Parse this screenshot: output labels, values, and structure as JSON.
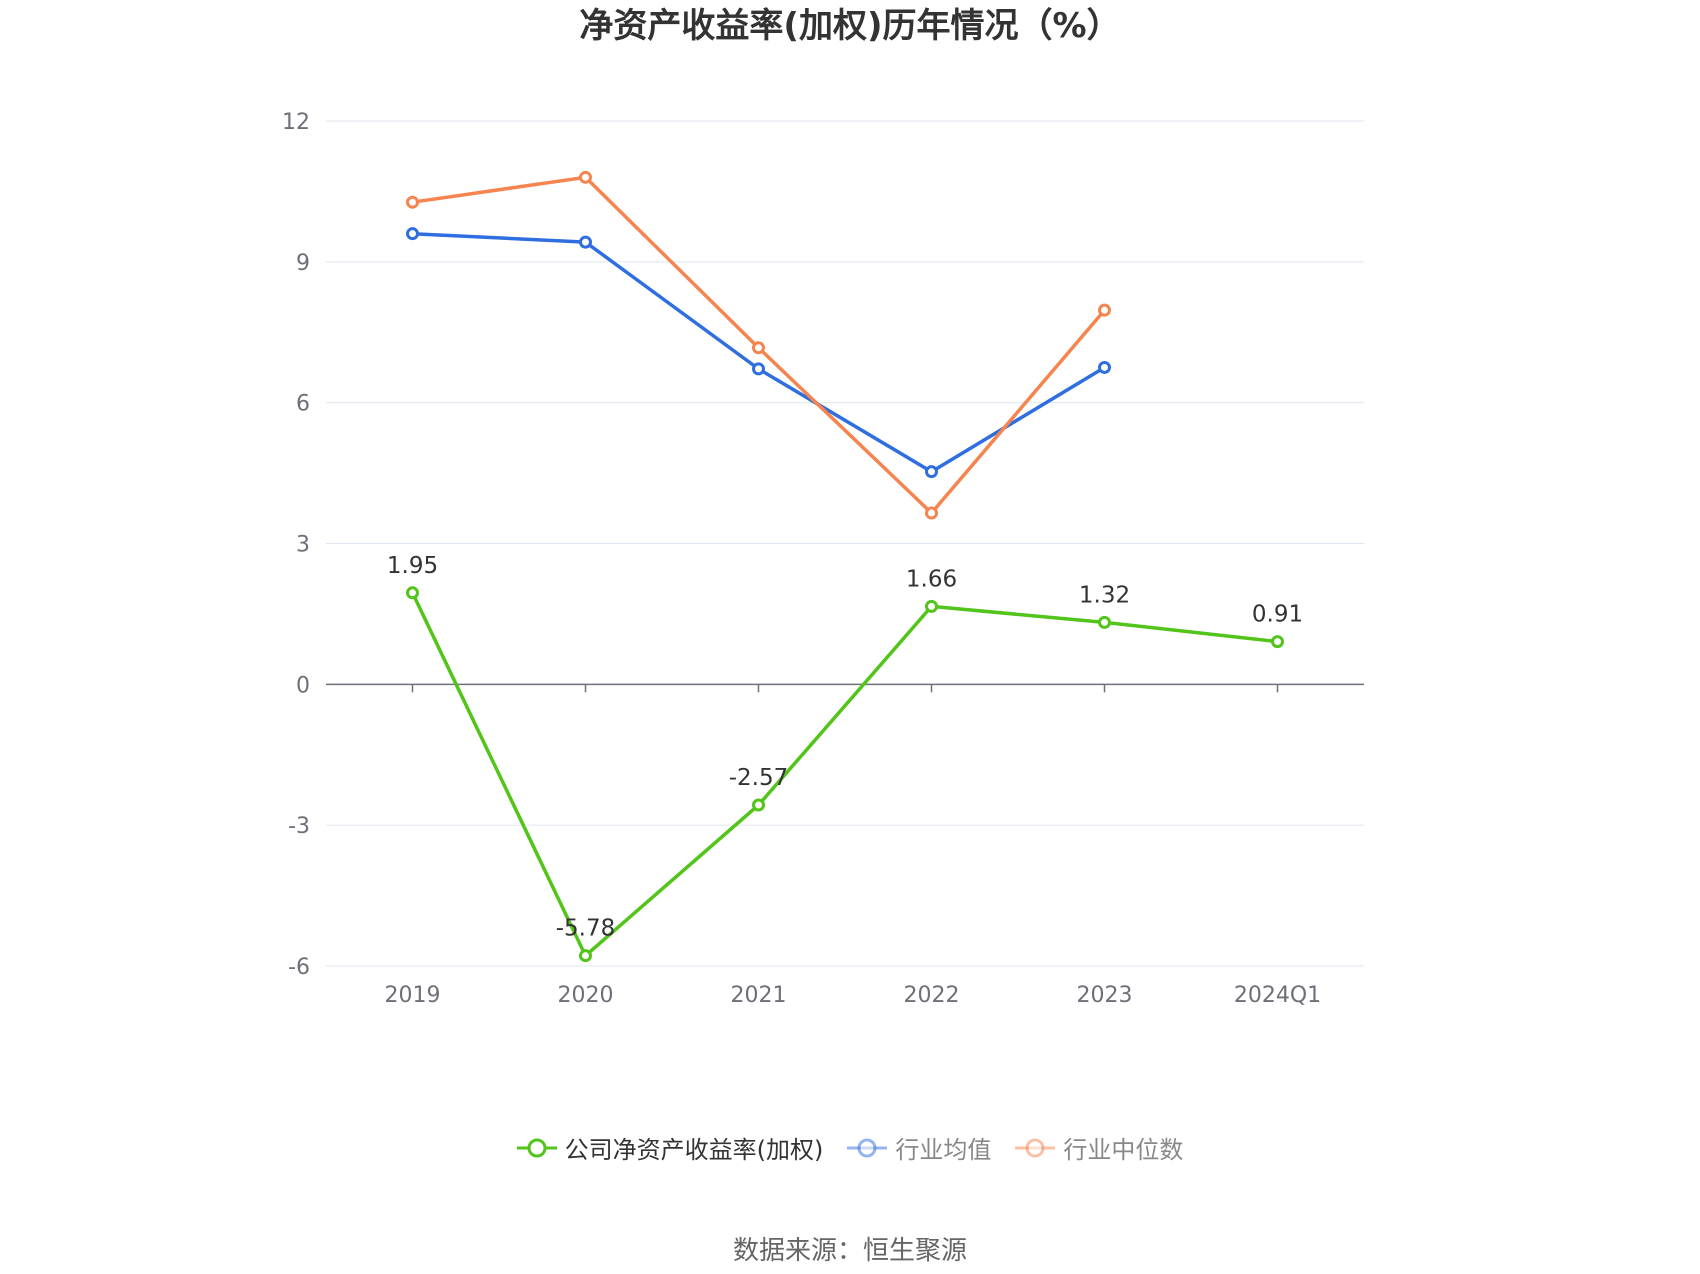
{
  "chart_data": {
    "type": "line",
    "title": "净资产收益率(加权)历年情况（%）",
    "categories": [
      "2019",
      "2020",
      "2021",
      "2022",
      "2023",
      "2024Q1"
    ],
    "y_ticks": [
      "12",
      "9",
      "6",
      "3",
      "0",
      "-3",
      "-6"
    ],
    "ylim": [
      -6,
      12
    ],
    "grid": true,
    "legend_position": "bottom",
    "series": [
      {
        "name": "公司净资产收益率(加权)",
        "color": "#52c41a",
        "values": [
          1.95,
          -5.78,
          -2.57,
          1.66,
          1.32,
          0.91
        ],
        "labels": [
          "1.95",
          "-5.78",
          "-2.57",
          "1.66",
          "1.32",
          "0.91"
        ],
        "show_labels": true,
        "legend_active": true
      },
      {
        "name": "行业均值",
        "color": "#2f6ee0",
        "values": [
          9.6,
          9.42,
          6.72,
          4.53,
          6.75,
          null
        ],
        "show_labels": false,
        "legend_active": false
      },
      {
        "name": "行业中位数",
        "color": "#f5844f",
        "values": [
          10.27,
          10.8,
          7.17,
          3.65,
          7.97,
          null
        ],
        "show_labels": false,
        "legend_active": false
      }
    ],
    "source": "数据来源：恒生聚源"
  }
}
